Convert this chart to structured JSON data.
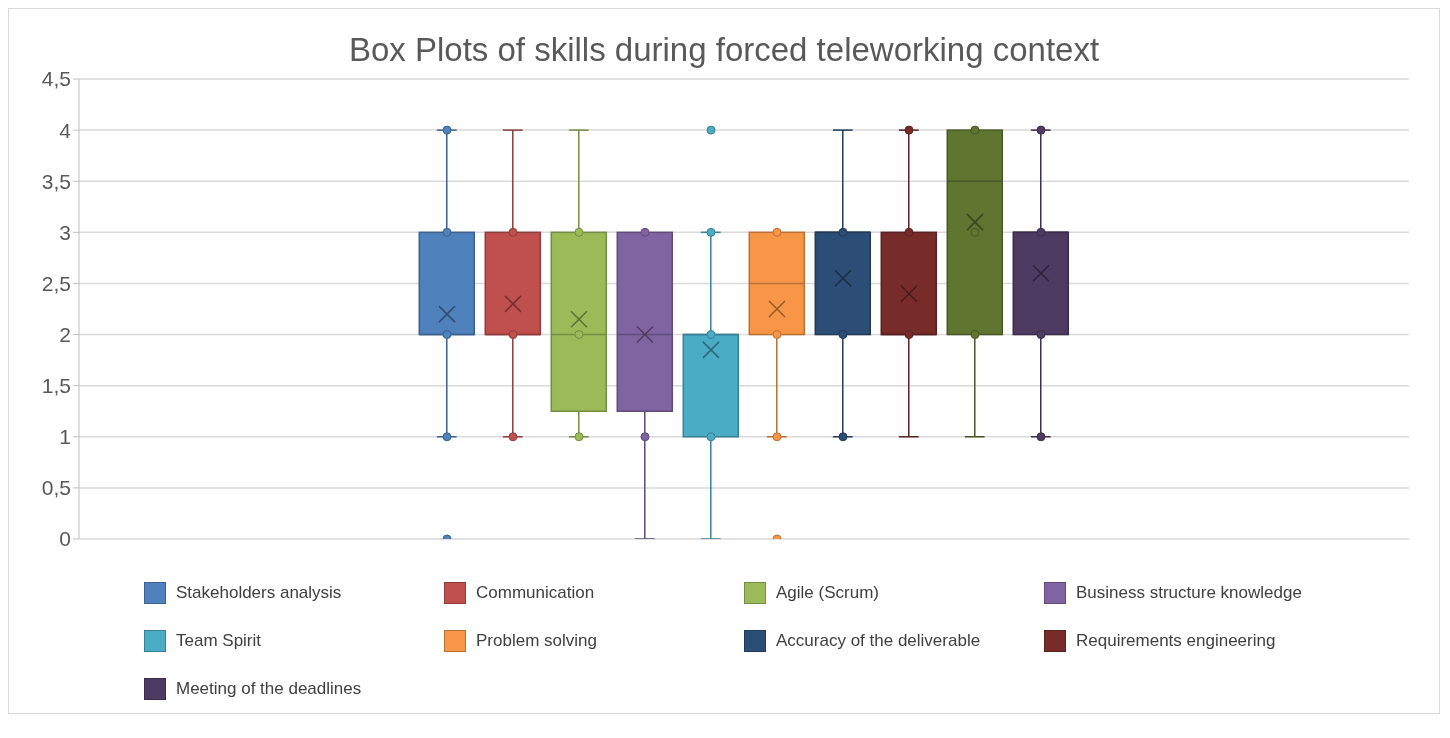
{
  "chart_data": {
    "type": "box",
    "title": "Box Plots of skills during forced teleworking context",
    "categories": [
      null
    ],
    "ylim": [
      0,
      4.5
    ],
    "yticks": [
      0,
      {
        "value": 0.5,
        "label": "0,5"
      },
      1,
      {
        "value": 1.5,
        "label": "1,5"
      },
      2,
      {
        "value": 2.5,
        "label": "2,5"
      },
      3,
      {
        "value": 3.5,
        "label": "3,5"
      },
      4,
      {
        "value": 4.5,
        "label": "4,5"
      }
    ],
    "grid": "y",
    "legend": "bottom",
    "marker": "circle",
    "series": [
      {
        "name": "Stakeholders analysis",
        "color": "#4f81bd",
        "boxes": [
          {
            "low": 1,
            "q1": 2,
            "median": 2,
            "q3": 3,
            "high": 4,
            "mean": 2.2,
            "outliers": [
              0,
              1,
              2,
              3,
              4
            ]
          }
        ]
      },
      {
        "name": "Communication",
        "color": "#c0504d",
        "boxes": [
          {
            "low": 1,
            "q1": 2,
            "median": 2,
            "q3": 3,
            "high": 4,
            "mean": 2.3,
            "outliers": [
              1,
              2,
              3
            ]
          }
        ]
      },
      {
        "name": "Agile (Scrum)",
        "color": "#9bbb59",
        "boxes": [
          {
            "low": 1,
            "q1": 1.25,
            "median": 2,
            "q3": 3,
            "high": 4,
            "mean": 2.15,
            "outliers": [
              1,
              2,
              3
            ]
          }
        ]
      },
      {
        "name": "Business structure knowledge",
        "color": "#8064a2",
        "boxes": [
          {
            "low": 0,
            "q1": 1.25,
            "median": 2,
            "q3": 3,
            "high": 3,
            "mean": 2,
            "outliers": [
              1,
              3
            ]
          }
        ]
      },
      {
        "name": "Team Spirit",
        "color": "#4bacc6",
        "boxes": [
          {
            "low": 0,
            "q1": 1,
            "median": 2,
            "q3": 2,
            "high": 3,
            "mean": 1.85,
            "outliers": [
              1,
              2,
              3,
              4
            ]
          }
        ]
      },
      {
        "name": "Problem solving",
        "color": "#f79646",
        "boxes": [
          {
            "low": 1,
            "q1": 2,
            "median": 2.5,
            "q3": 3,
            "high": 3,
            "mean": 2.25,
            "outliers": [
              0,
              1,
              2,
              3
            ]
          }
        ]
      },
      {
        "name": "Accuracy of the deliverable",
        "color": "#2c4d75",
        "boxes": [
          {
            "low": 1,
            "q1": 2,
            "median": 3,
            "q3": 3,
            "high": 4,
            "mean": 2.55,
            "outliers": [
              1,
              2,
              3
            ]
          }
        ]
      },
      {
        "name": "Requirements engineering",
        "color": "#772c2a",
        "boxes": [
          {
            "low": 1,
            "q1": 2,
            "median": 2,
            "q3": 3,
            "high": 4,
            "mean": 2.4,
            "outliers": [
              2,
              3,
              4
            ]
          }
        ]
      },
      {
        "color": "#5f7530",
        "boxes": [
          {
            "low": 1,
            "q1": 2,
            "median": 3.5,
            "q3": 4,
            "high": 4,
            "mean": 3.1,
            "outliers": [
              2,
              3,
              4
            ]
          }
        ]
      },
      {
        "name": "Meeting of the deadlines",
        "color": "#4d3b62",
        "boxes": [
          {
            "low": 1,
            "q1": 2,
            "median": 3,
            "q3": 3,
            "high": 4,
            "mean": 2.6,
            "outliers": [
              1,
              2,
              3,
              4
            ]
          }
        ]
      }
    ]
  }
}
